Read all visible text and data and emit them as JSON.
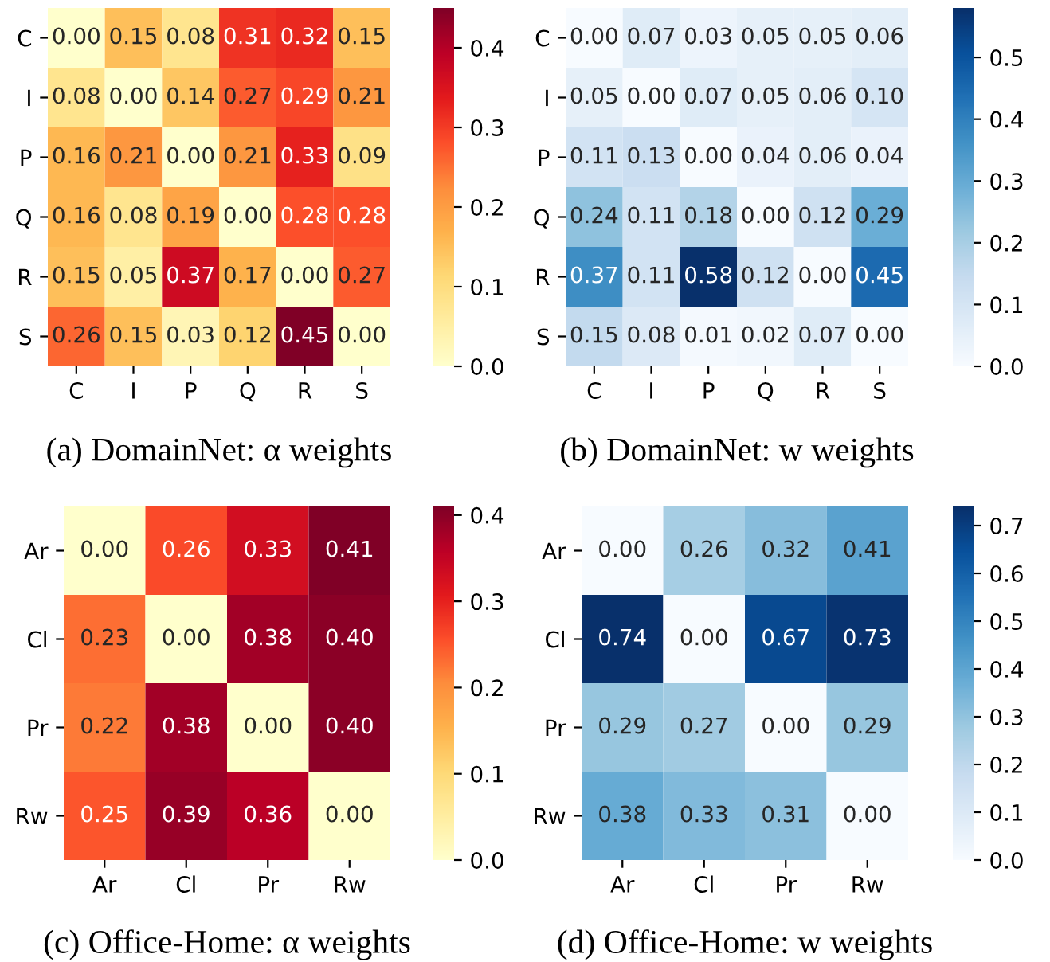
{
  "chart_data": [
    {
      "type": "heatmap",
      "title": "(a) DomainNet: α weights",
      "categories": [
        "C",
        "I",
        "P",
        "Q",
        "R",
        "S"
      ],
      "y_categories": [
        "C",
        "I",
        "P",
        "Q",
        "R",
        "S"
      ],
      "cells": [
        [
          0.0,
          0.15,
          0.08,
          0.31,
          0.32,
          0.15
        ],
        [
          0.08,
          0.0,
          0.14,
          0.27,
          0.29,
          0.21
        ],
        [
          0.16,
          0.21,
          0.0,
          0.21,
          0.33,
          0.09
        ],
        [
          0.16,
          0.08,
          0.19,
          0.0,
          0.28,
          0.28
        ],
        [
          0.15,
          0.05,
          0.37,
          0.17,
          0.0,
          0.27
        ],
        [
          0.26,
          0.15,
          0.03,
          0.12,
          0.45,
          0.0
        ]
      ],
      "cell_labels": [
        [
          "0.00",
          "0.15",
          "0.08",
          "0.31",
          "0.32",
          "0.15"
        ],
        [
          "0.08",
          "0.00",
          "0.14",
          "0.27",
          "0.29",
          "0.21"
        ],
        [
          "0.16",
          "0.21",
          "0.00",
          "0.21",
          "0.33",
          "0.09"
        ],
        [
          "0.16",
          "0.08",
          "0.19",
          "0.00",
          "0.28",
          "0.28"
        ],
        [
          "0.15",
          "0.05",
          "0.37",
          "0.17",
          "0.00",
          "0.27"
        ],
        [
          "0.26",
          "0.15",
          "0.03",
          "0.12",
          "0.45",
          "0.00"
        ]
      ],
      "data_labels": true,
      "colors": [
        "#ffffcc",
        "#ffeda0",
        "#fed976",
        "#feb24c",
        "#fd8d3c",
        "#fc4e2a",
        "#e31a1c",
        "#bd0026",
        "#800026"
      ],
      "clim": [
        0,
        0.45
      ],
      "cticks": [
        {
          "value": 0,
          "label": "0.0"
        },
        {
          "value": 0.1,
          "label": "0.1"
        },
        {
          "value": 0.2,
          "label": "0.2"
        },
        {
          "value": 0.3,
          "label": "0.3"
        },
        {
          "value": 0.4,
          "label": "0.4"
        }
      ]
    },
    {
      "type": "heatmap",
      "title": "(b) DomainNet: w weights",
      "categories": [
        "C",
        "I",
        "P",
        "Q",
        "R",
        "S"
      ],
      "y_categories": [
        "C",
        "I",
        "P",
        "Q",
        "R",
        "S"
      ],
      "cells": [
        [
          0.0,
          0.07,
          0.03,
          0.05,
          0.05,
          0.06
        ],
        [
          0.05,
          0.0,
          0.07,
          0.05,
          0.06,
          0.1
        ],
        [
          0.11,
          0.13,
          0.0,
          0.04,
          0.06,
          0.04
        ],
        [
          0.24,
          0.11,
          0.18,
          0.0,
          0.12,
          0.29
        ],
        [
          0.37,
          0.11,
          0.58,
          0.12,
          0.0,
          0.45
        ],
        [
          0.15,
          0.08,
          0.01,
          0.02,
          0.07,
          0.0
        ]
      ],
      "cell_labels": [
        [
          "0.00",
          "0.07",
          "0.03",
          "0.05",
          "0.05",
          "0.06"
        ],
        [
          "0.05",
          "0.00",
          "0.07",
          "0.05",
          "0.06",
          "0.10"
        ],
        [
          "0.11",
          "0.13",
          "0.00",
          "0.04",
          "0.06",
          "0.04"
        ],
        [
          "0.24",
          "0.11",
          "0.18",
          "0.00",
          "0.12",
          "0.29"
        ],
        [
          "0.37",
          "0.11",
          "0.58",
          "0.12",
          "0.00",
          "0.45"
        ],
        [
          "0.15",
          "0.08",
          "0.01",
          "0.02",
          "0.07",
          "0.00"
        ]
      ],
      "data_labels": true,
      "colors": [
        "#f7fbff",
        "#deebf7",
        "#c6dbef",
        "#9ecae1",
        "#6baed6",
        "#4292c6",
        "#2171b5",
        "#08519c",
        "#08306b"
      ],
      "clim": [
        0,
        0.58
      ],
      "cticks": [
        {
          "value": 0,
          "label": "0.0"
        },
        {
          "value": 0.1,
          "label": "0.1"
        },
        {
          "value": 0.2,
          "label": "0.2"
        },
        {
          "value": 0.3,
          "label": "0.3"
        },
        {
          "value": 0.4,
          "label": "0.4"
        },
        {
          "value": 0.5,
          "label": "0.5"
        }
      ]
    },
    {
      "type": "heatmap",
      "title": "(c) Office-Home: α weights",
      "categories": [
        "Ar",
        "Cl",
        "Pr",
        "Rw"
      ],
      "y_categories": [
        "Ar",
        "Cl",
        "Pr",
        "Rw"
      ],
      "cells": [
        [
          0.0,
          0.26,
          0.33,
          0.41
        ],
        [
          0.23,
          0.0,
          0.38,
          0.4
        ],
        [
          0.22,
          0.38,
          0.0,
          0.4
        ],
        [
          0.25,
          0.39,
          0.36,
          0.0
        ]
      ],
      "cell_labels": [
        [
          "0.00",
          "0.26",
          "0.33",
          "0.41"
        ],
        [
          "0.23",
          "0.00",
          "0.38",
          "0.40"
        ],
        [
          "0.22",
          "0.38",
          "0.00",
          "0.40"
        ],
        [
          "0.25",
          "0.39",
          "0.36",
          "0.00"
        ]
      ],
      "data_labels": true,
      "colors": [
        "#ffffcc",
        "#ffeda0",
        "#fed976",
        "#feb24c",
        "#fd8d3c",
        "#fc4e2a",
        "#e31a1c",
        "#bd0026",
        "#800026"
      ],
      "clim": [
        0,
        0.41
      ],
      "cticks": [
        {
          "value": 0,
          "label": "0.0"
        },
        {
          "value": 0.1,
          "label": "0.1"
        },
        {
          "value": 0.2,
          "label": "0.2"
        },
        {
          "value": 0.3,
          "label": "0.3"
        },
        {
          "value": 0.4,
          "label": "0.4"
        }
      ]
    },
    {
      "type": "heatmap",
      "title": "(d) Office-Home: w weights",
      "categories": [
        "Ar",
        "Cl",
        "Pr",
        "Rw"
      ],
      "y_categories": [
        "Ar",
        "Cl",
        "Pr",
        "Rw"
      ],
      "cells": [
        [
          0.0,
          0.26,
          0.32,
          0.41
        ],
        [
          0.74,
          0.0,
          0.67,
          0.73
        ],
        [
          0.29,
          0.27,
          0.0,
          0.29
        ],
        [
          0.38,
          0.33,
          0.31,
          0.0
        ]
      ],
      "cell_labels": [
        [
          "0.00",
          "0.26",
          "0.32",
          "0.41"
        ],
        [
          "0.74",
          "0.00",
          "0.67",
          "0.73"
        ],
        [
          "0.29",
          "0.27",
          "0.00",
          "0.29"
        ],
        [
          "0.38",
          "0.33",
          "0.31",
          "0.00"
        ]
      ],
      "data_labels": true,
      "colors": [
        "#f7fbff",
        "#deebf7",
        "#c6dbef",
        "#9ecae1",
        "#6baed6",
        "#4292c6",
        "#2171b5",
        "#08519c",
        "#08306b"
      ],
      "clim": [
        0,
        0.74
      ],
      "cticks": [
        {
          "value": 0,
          "label": "0.0"
        },
        {
          "value": 0.1,
          "label": "0.1"
        },
        {
          "value": 0.2,
          "label": "0.2"
        },
        {
          "value": 0.3,
          "label": "0.3"
        },
        {
          "value": 0.4,
          "label": "0.4"
        },
        {
          "value": 0.5,
          "label": "0.5"
        },
        {
          "value": 0.6,
          "label": "0.6"
        },
        {
          "value": 0.7,
          "label": "0.7"
        }
      ]
    }
  ]
}
